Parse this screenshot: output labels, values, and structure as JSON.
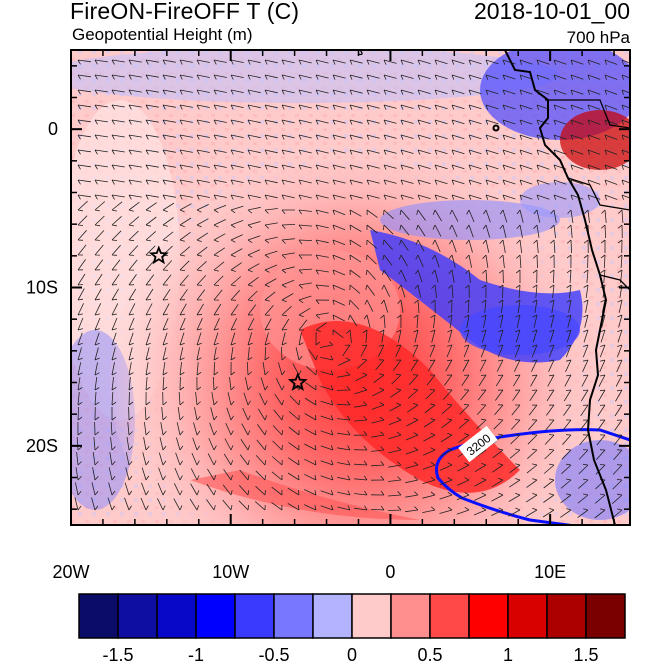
{
  "header": {
    "title": "FireON-FireOFF T (C)",
    "subtitle": "Geopotential Height (m)",
    "datetime": "2018-10-01_00",
    "level": "700 hPa"
  },
  "map": {
    "lon_range": [
      -20,
      15
    ],
    "lat_range": [
      -25,
      5
    ],
    "x_ticks": [
      "20W",
      "10W",
      "0",
      "10E"
    ],
    "y_ticks": [
      "0",
      "10S",
      "20S"
    ],
    "contour_label": "3200",
    "markers": [
      {
        "name": "star-1",
        "lon": -14.5,
        "lat": -8
      },
      {
        "name": "star-2",
        "lon": -5.8,
        "lat": -16
      }
    ]
  },
  "colorbar": {
    "colors": [
      "#0b0b6a",
      "#0e0ea3",
      "#0808c8",
      "#0000ff",
      "#3a3aff",
      "#7878ff",
      "#b3b3ff",
      "#ffcaca",
      "#ff8e8e",
      "#ff4848",
      "#ff0000",
      "#d90000",
      "#aa0000",
      "#7a0000"
    ],
    "labels": [
      "-1.5",
      "-1",
      "-0.5",
      "0",
      "0.5",
      "1",
      "1.5"
    ]
  }
}
